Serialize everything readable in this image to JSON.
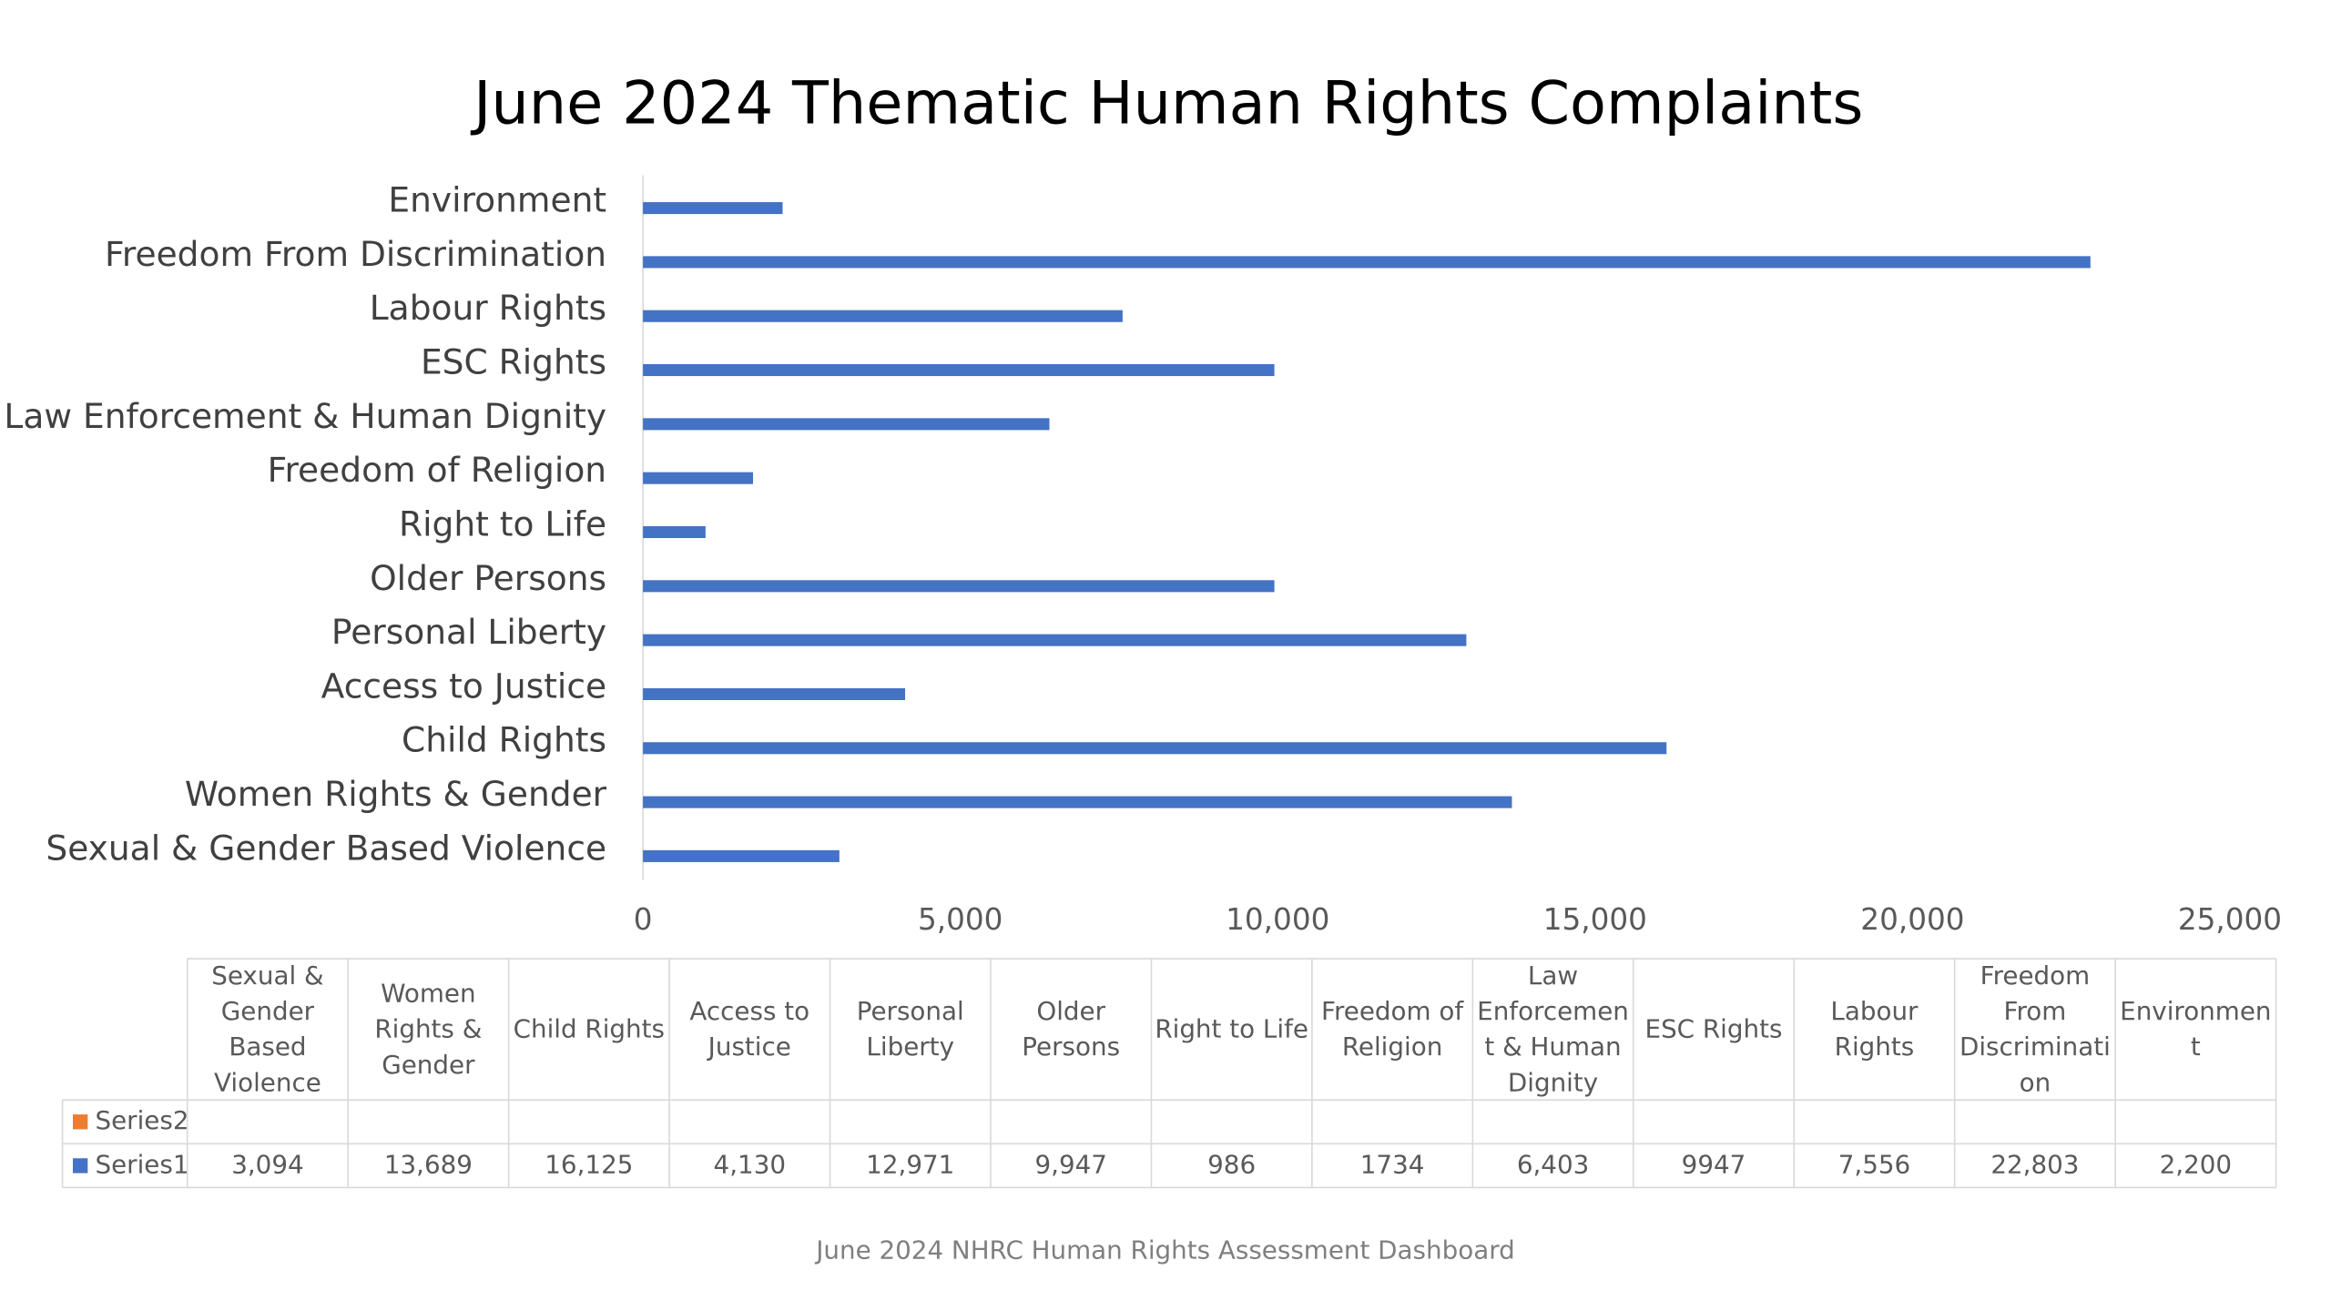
{
  "chart_data": {
    "type": "bar",
    "orientation": "horizontal",
    "title": "June 2024 Thematic Human Rights Complaints",
    "caption": "June 2024 NHRC Human Rights Assessment Dashboard",
    "categories": [
      "Sexual & Gender Based Violence",
      "Women Rights & Gender",
      "Child Rights",
      "Access to Justice",
      "Personal Liberty",
      "Older Persons",
      "Right to Life",
      "Freedom of Religion",
      "Law Enforcement & Human Dignity",
      "ESC Rights",
      "Labour Rights",
      "Freedom From Discrimination",
      "Environment"
    ],
    "series": [
      {
        "name": "Series2",
        "color": "#ed7d31",
        "values": [
          null,
          null,
          null,
          null,
          null,
          null,
          null,
          null,
          null,
          null,
          null,
          null,
          null
        ]
      },
      {
        "name": "Series1",
        "color": "#4472c4",
        "values": [
          3094,
          13689,
          16125,
          4130,
          12971,
          9947,
          986,
          1734,
          6403,
          9947,
          7556,
          22803,
          2200
        ],
        "value_labels": [
          "3,094",
          "13,689",
          "16,125",
          "4,130",
          "12,971",
          "9,947",
          "986",
          "1734",
          "6,403",
          "9947",
          "7,556",
          "22,803",
          "2,200"
        ]
      }
    ],
    "xlim": [
      0,
      25000
    ],
    "xticks": [
      0,
      {
        "value": 5000,
        "label": "5,000"
      },
      {
        "value": 10000,
        "label": "10,000"
      },
      {
        "value": 15000,
        "label": "15,000"
      },
      {
        "value": 20000,
        "label": "20,000"
      },
      {
        "value": 25000,
        "label": "25,000"
      }
    ],
    "grid": false,
    "data_table": true
  }
}
